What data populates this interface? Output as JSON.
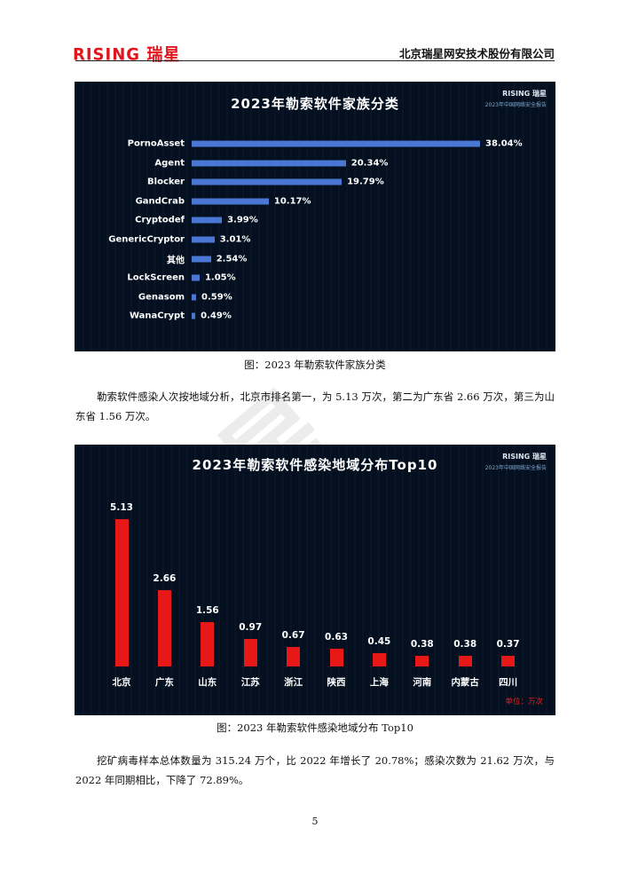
{
  "header": {
    "logo": "RISING 瑞星",
    "company": "北京瑞星网安技术股份有限公司",
    "brand_color": "#e0151d"
  },
  "charts_brand": {
    "logo": "RISING 瑞星",
    "subtitle": "2023年中国网络安全报告"
  },
  "chart_data": [
    {
      "type": "bar",
      "orientation": "horizontal",
      "title": "2023年勒索软件家族分类",
      "categories": [
        "PornoAsset",
        "Agent",
        "Blocker",
        "GandCrab",
        "Cryptodef",
        "GenericCryptor",
        "其他",
        "LockScreen",
        "Genasom",
        "WanaCrypt"
      ],
      "values": [
        38.04,
        20.34,
        19.79,
        10.17,
        3.99,
        3.01,
        2.54,
        1.05,
        0.59,
        0.49
      ],
      "value_labels": [
        "38.04%",
        "20.34%",
        "19.79%",
        "10.17%",
        "3.99%",
        "3.01%",
        "2.54%",
        "1.05%",
        "0.59%",
        "0.49%"
      ],
      "bar_color": "#4a76d4",
      "background": "#04101f",
      "grid": false
    },
    {
      "type": "bar",
      "orientation": "vertical",
      "title": "2023年勒索软件感染地域分布Top10",
      "categories": [
        "北京",
        "广东",
        "山东",
        "江苏",
        "浙江",
        "陕西",
        "上海",
        "河南",
        "内蒙古",
        "四川"
      ],
      "values": [
        5.13,
        2.66,
        1.56,
        0.97,
        0.67,
        0.63,
        0.45,
        0.38,
        0.38,
        0.37
      ],
      "value_labels": [
        "5.13",
        "2.66",
        "1.56",
        "0.97",
        "0.67",
        "0.63",
        "0.45",
        "0.38",
        "0.38",
        "0.37"
      ],
      "unit_label": "单位：万次",
      "bar_color": "#e81818",
      "background": "#04101f",
      "grid": false
    }
  ],
  "captions": [
    "图：2023 年勒索软件家族分类",
    "图：2023 年勒索软件感染地域分布 Top10"
  ],
  "paragraphs": [
    "勒索软件感染人次按地域分析，北京市排名第一，为 5.13 万次，第二为广东省 2.66 万次，第三为山东省 1.56 万次。",
    "挖矿病毒样本总体数量为 315.24 万个，比 2022 年增长了 20.78%；感染次数为 21.62 万次，与 2022 年同期相比，下降了 72.89%。"
  ],
  "watermark": "瑞星",
  "page_number": "5"
}
